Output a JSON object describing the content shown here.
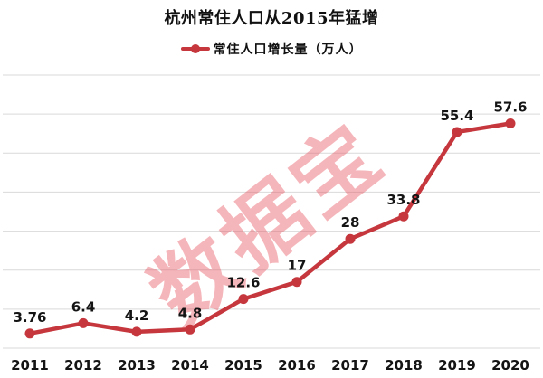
{
  "chart_data": {
    "type": "line",
    "title": "杭州常住人口从2015年猛增",
    "legend": "常住人口增长量（万人）",
    "legend_position": "top",
    "categories": [
      "2011",
      "2012",
      "2013",
      "2014",
      "2015",
      "2016",
      "2017",
      "2018",
      "2019",
      "2020"
    ],
    "values": [
      3.76,
      6.4,
      4.2,
      4.8,
      12.6,
      17,
      28,
      33.8,
      55.4,
      57.6
    ],
    "value_labels": [
      "3.76",
      "6.4",
      "4.2",
      "4.8",
      "12.6",
      "17",
      "28",
      "33.8",
      "55.4",
      "57.6"
    ],
    "xlabel": "",
    "ylabel": "",
    "ylim": [
      0,
      70
    ],
    "grid": true,
    "grid_step": 10,
    "colors": {
      "line": "#C5373D",
      "marker": "#C5373D",
      "grid": "#D9D9D9",
      "text": "#141414",
      "watermark": "#E8545E"
    },
    "watermark": {
      "text": "数据宝",
      "opacity": 0.42,
      "rotation_deg": -38
    }
  }
}
